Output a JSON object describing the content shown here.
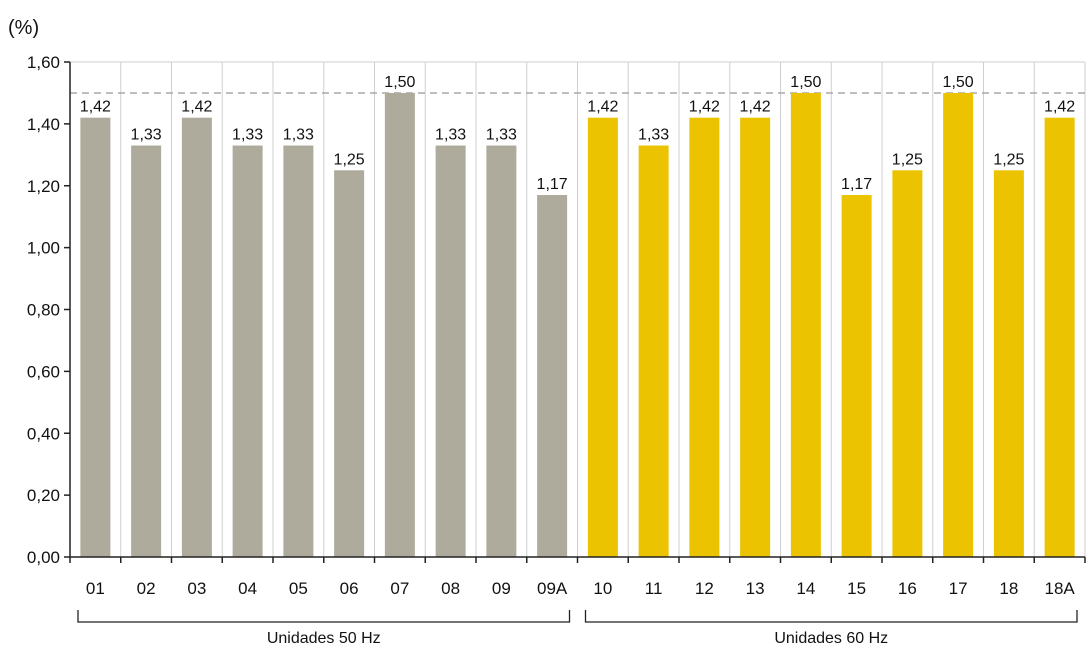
{
  "chart_data": {
    "type": "bar",
    "unit_label": "(%)",
    "categories": [
      "01",
      "02",
      "03",
      "04",
      "05",
      "06",
      "07",
      "08",
      "09",
      "09A",
      "10",
      "11",
      "12",
      "13",
      "14",
      "15",
      "16",
      "17",
      "18",
      "18A"
    ],
    "values": [
      1.42,
      1.33,
      1.42,
      1.33,
      1.33,
      1.25,
      1.5,
      1.33,
      1.33,
      1.17,
      1.42,
      1.33,
      1.42,
      1.42,
      1.5,
      1.17,
      1.25,
      1.5,
      1.25,
      1.42
    ],
    "data_labels": [
      "1,42",
      "1,33",
      "1,42",
      "1,33",
      "1,33",
      "1,25",
      "1,50",
      "1,33",
      "1,33",
      "1,17",
      "1,42",
      "1,33",
      "1,42",
      "1,42",
      "1,50",
      "1,17",
      "1,25",
      "1,50",
      "1,25",
      "1,42"
    ],
    "ylim": [
      0,
      1.6
    ],
    "yticks": [
      0,
      0.2,
      0.4,
      0.6,
      0.8,
      1.0,
      1.2,
      1.4,
      1.6
    ],
    "ytick_labels": [
      "0,00",
      "0,20",
      "0,40",
      "0,60",
      "0,80",
      "1,00",
      "1,20",
      "1,40",
      "1,60"
    ],
    "reference_line": 1.5,
    "grid": "vertical",
    "groups": [
      {
        "label": "Unidades  50 Hz",
        "start": 0,
        "end": 9,
        "color": "#aeaa9c"
      },
      {
        "label": "Unidades 60 Hz",
        "start": 10,
        "end": 19,
        "color": "#ecc300"
      }
    ]
  }
}
